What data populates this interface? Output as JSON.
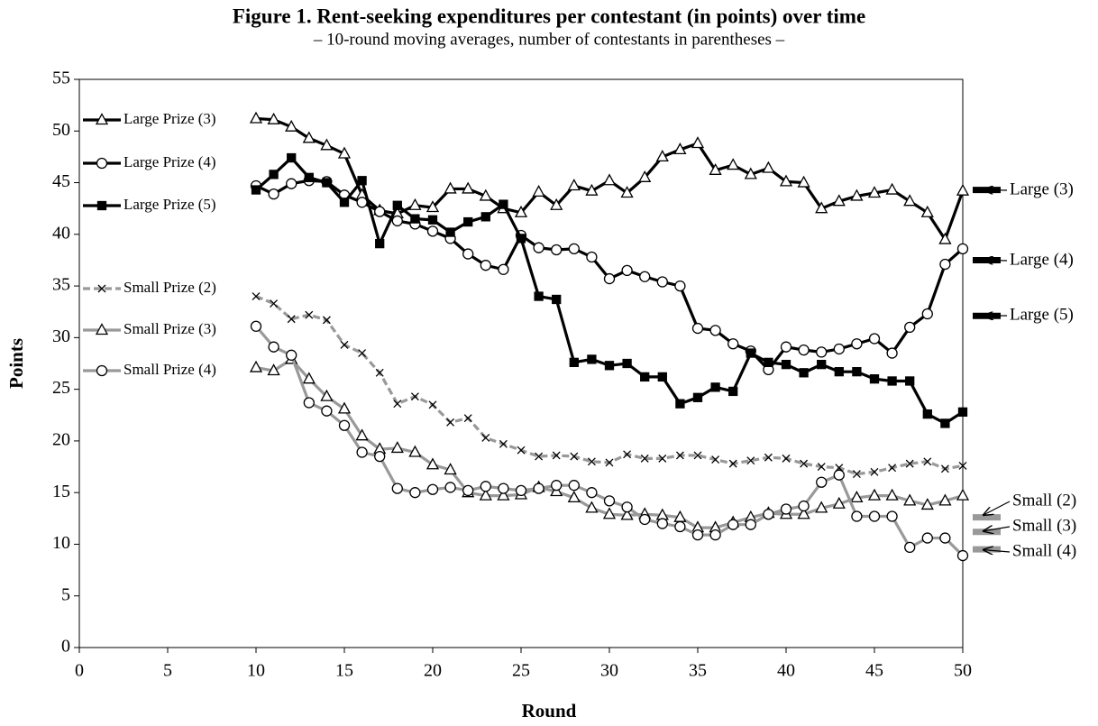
{
  "chart_data": {
    "type": "line",
    "title": "Figure 1. Rent-seeking expenditures per contestant (in points) over time",
    "subtitle": "– 10-round moving averages, number of contestants in parentheses –",
    "x_label": "Round",
    "y_label": "Points",
    "xlim": [
      0,
      50
    ],
    "ylim": [
      0,
      55
    ],
    "xticks": [
      0,
      5,
      10,
      15,
      20,
      25,
      30,
      35,
      40,
      45,
      50
    ],
    "yticks": [
      0,
      5,
      10,
      15,
      20,
      25,
      30,
      35,
      40,
      45,
      50,
      55
    ],
    "legend": "left",
    "x": [
      10,
      11,
      12,
      13,
      14,
      15,
      16,
      17,
      18,
      19,
      20,
      21,
      22,
      23,
      24,
      25,
      26,
      27,
      28,
      29,
      30,
      31,
      32,
      33,
      34,
      35,
      36,
      37,
      38,
      39,
      40,
      41,
      42,
      43,
      44,
      45,
      46,
      47,
      48,
      49,
      50
    ],
    "series": [
      {
        "name": "Large Prize (3)",
        "color": "#000000",
        "marker": "triangle",
        "dash": false,
        "values": [
          51.2,
          51.1,
          50.4,
          49.3,
          48.6,
          47.8,
          43.8,
          42.3,
          42.0,
          42.8,
          42.6,
          44.4,
          44.4,
          43.7,
          42.5,
          42.1,
          44.1,
          42.8,
          44.7,
          44.2,
          45.2,
          44.0,
          45.5,
          47.5,
          48.2,
          48.8,
          46.2,
          46.7,
          45.8,
          46.4,
          45.1,
          45.0,
          42.5,
          43.2,
          43.7,
          44.0,
          44.3,
          43.2,
          42.1,
          39.5,
          44.2
        ]
      },
      {
        "name": "Large Prize (4)",
        "color": "#000000",
        "marker": "circle",
        "dash": false,
        "values": [
          44.7,
          43.9,
          44.9,
          45.2,
          45.1,
          43.8,
          43.1,
          42.2,
          41.3,
          41.0,
          40.3,
          39.6,
          38.1,
          37.0,
          36.6,
          39.9,
          38.7,
          38.5,
          38.6,
          37.8,
          35.7,
          36.5,
          35.9,
          35.4,
          35.0,
          30.9,
          30.7,
          29.4,
          28.7,
          26.9,
          29.1,
          28.8,
          28.6,
          28.9,
          29.4,
          29.9,
          28.5,
          31.0,
          32.3,
          37.1,
          38.6
        ]
      },
      {
        "name": "Large Prize (5)",
        "color": "#000000",
        "marker": "square",
        "dash": false,
        "values": [
          44.3,
          45.8,
          47.4,
          45.5,
          45.0,
          43.1,
          45.2,
          39.1,
          42.8,
          41.5,
          41.4,
          40.2,
          41.2,
          41.7,
          42.9,
          39.6,
          34.0,
          33.7,
          27.6,
          27.9,
          27.3,
          27.5,
          26.2,
          26.2,
          23.6,
          24.2,
          25.2,
          24.8,
          28.5,
          27.6,
          27.4,
          26.6,
          27.4,
          26.7,
          26.7,
          26.0,
          25.8,
          25.8,
          22.6,
          21.7,
          22.8
        ]
      },
      {
        "name": "Small Prize (2)",
        "color": "#999999",
        "marker": "x",
        "dash": true,
        "values": [
          34.0,
          33.3,
          31.8,
          32.2,
          31.7,
          29.3,
          28.5,
          26.6,
          23.6,
          24.3,
          23.5,
          21.8,
          22.2,
          20.3,
          19.7,
          19.1,
          18.5,
          18.6,
          18.5,
          18.0,
          17.9,
          18.7,
          18.3,
          18.3,
          18.6,
          18.6,
          18.2,
          17.8,
          18.1,
          18.4,
          18.3,
          17.8,
          17.5,
          17.4,
          16.8,
          17.0,
          17.4,
          17.8,
          18.0,
          17.3,
          17.6
        ]
      },
      {
        "name": "Small Prize (3)",
        "color": "#999999",
        "marker": "triangle",
        "dash": false,
        "values": [
          27.1,
          26.8,
          27.9,
          26.0,
          24.3,
          23.1,
          20.5,
          19.2,
          19.3,
          18.9,
          17.7,
          17.2,
          15.0,
          14.7,
          14.7,
          14.8,
          15.5,
          15.1,
          14.5,
          13.5,
          12.9,
          12.8,
          12.9,
          12.8,
          12.6,
          11.6,
          11.6,
          12.1,
          12.6,
          13.0,
          12.9,
          12.9,
          13.5,
          13.9,
          14.5,
          14.7,
          14.7,
          14.2,
          13.8,
          14.2,
          14.7
        ]
      },
      {
        "name": "Small Prize (4)",
        "color": "#999999",
        "marker": "circle",
        "dash": false,
        "values": [
          31.1,
          29.1,
          28.3,
          23.7,
          22.9,
          21.5,
          18.9,
          18.5,
          15.4,
          15.0,
          15.3,
          15.5,
          15.2,
          15.6,
          15.4,
          15.2,
          15.4,
          15.7,
          15.7,
          15.0,
          14.2,
          13.6,
          12.4,
          12.0,
          11.7,
          10.9,
          10.9,
          11.9,
          11.9,
          12.9,
          13.4,
          13.7,
          16.0,
          16.7,
          12.7,
          12.7,
          12.7,
          9.7,
          10.6,
          10.6,
          8.9
        ]
      }
    ],
    "reference_lines": [
      {
        "label": "Large (3)",
        "value": 44.3,
        "color": "#000000"
      },
      {
        "label": "Large (4)",
        "value": 37.5,
        "color": "#000000"
      },
      {
        "label": "Large (5)",
        "value": 32.1,
        "color": "#000000"
      },
      {
        "label": "Small (2)",
        "value": 12.6,
        "color": "#999999"
      },
      {
        "label": "Small (3)",
        "value": 11.2,
        "color": "#999999"
      },
      {
        "label": "Small (4)",
        "value": 9.5,
        "color": "#999999"
      }
    ]
  }
}
